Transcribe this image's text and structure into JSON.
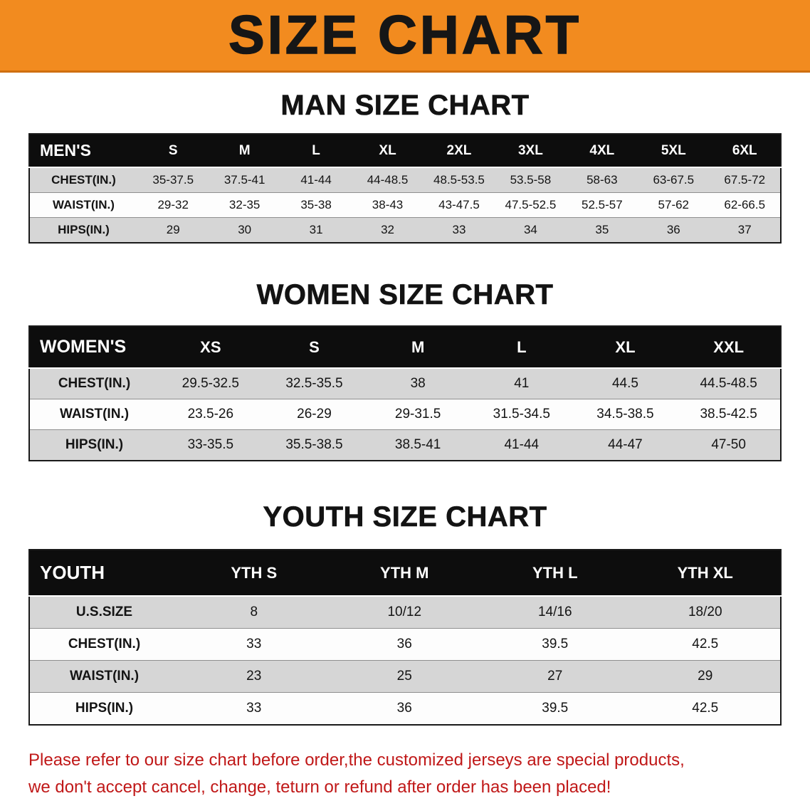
{
  "banner": {
    "title": "SIZE CHART",
    "bg_color": "#F28B1F",
    "text_color": "#161616"
  },
  "sections": {
    "men": {
      "heading": "MAN SIZE CHART",
      "table": {
        "header": [
          "MEN'S",
          "S",
          "M",
          "L",
          "XL",
          "2XL",
          "3XL",
          "4XL",
          "5XL",
          "6XL"
        ],
        "rows": [
          [
            "CHEST(IN.)",
            "35-37.5",
            "37.5-41",
            "41-44",
            "44-48.5",
            "48.5-53.5",
            "53.5-58",
            "58-63",
            "63-67.5",
            "67.5-72"
          ],
          [
            "WAIST(IN.)",
            "29-32",
            "32-35",
            "35-38",
            "38-43",
            "43-47.5",
            "47.5-52.5",
            "52.5-57",
            "57-62",
            "62-66.5"
          ],
          [
            "HIPS(IN.)",
            "29",
            "30",
            "31",
            "32",
            "33",
            "34",
            "35",
            "36",
            "37"
          ]
        ]
      }
    },
    "women": {
      "heading": "WOMEN SIZE CHART",
      "table": {
        "header": [
          "WOMEN'S",
          "XS",
          "S",
          "M",
          "L",
          "XL",
          "XXL"
        ],
        "rows": [
          [
            "CHEST(IN.)",
            "29.5-32.5",
            "32.5-35.5",
            "38",
            "41",
            "44.5",
            "44.5-48.5"
          ],
          [
            "WAIST(IN.)",
            "23.5-26",
            "26-29",
            "29-31.5",
            "31.5-34.5",
            "34.5-38.5",
            "38.5-42.5"
          ],
          [
            "HIPS(IN.)",
            "33-35.5",
            "35.5-38.5",
            "38.5-41",
            "41-44",
            "44-47",
            "47-50"
          ]
        ]
      }
    },
    "youth": {
      "heading": "YOUTH SIZE CHART",
      "table": {
        "header": [
          "YOUTH",
          "YTH S",
          "YTH M",
          "YTH L",
          "YTH XL"
        ],
        "rows": [
          [
            "U.S.SIZE",
            "8",
            "10/12",
            "14/16",
            "18/20"
          ],
          [
            "CHEST(IN.)",
            "33",
            "36",
            "39.5",
            "42.5"
          ],
          [
            "WAIST(IN.)",
            "23",
            "25",
            "27",
            "29"
          ],
          [
            "HIPS(IN.)",
            "33",
            "36",
            "39.5",
            "42.5"
          ]
        ]
      }
    }
  },
  "disclaimer": {
    "color": "#C01818",
    "lines": [
      "Please refer to our size chart before order,the customized jerseys are special products,",
      "we don't accept cancel, change, teturn or refund after order has been placed!"
    ]
  },
  "colors": {
    "header_row_bg": "#0D0D0D",
    "striped_row_bg": "#D6D6D6",
    "banner_orange": "#F28B1F",
    "disclaimer_red": "#C01818"
  }
}
